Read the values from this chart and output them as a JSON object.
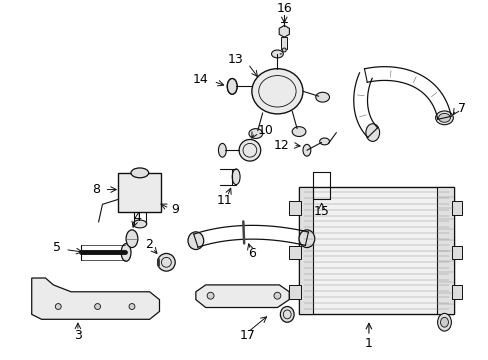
{
  "bg": "#ffffff",
  "lc": "#111111",
  "lw": 0.8,
  "parts_font": 8.5
}
